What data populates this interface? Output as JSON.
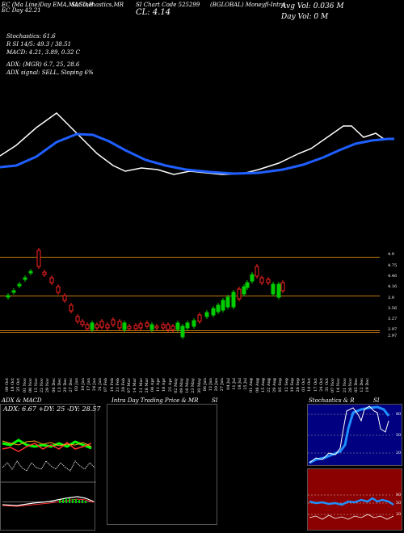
{
  "header": {
    "line1": "EC (Ma Line)Day EMA,MACD,B",
    "line1b": "EC Day      42.21",
    "line2": "SI,Stochastics,MR",
    "line3": "SI Chart Code 525299",
    "line4": "(BGLOBAL) Moneyfl-Intra",
    "cl_label": "CL: 4.14",
    "avg_vol": "Avg Vol: 0.036   M",
    "day_vol": "Day Vol: 0   M"
  },
  "indicators": {
    "stoch": "Stochastics: 61.6",
    "rsi": "R      SI 14/5: 49.3 / 38.51",
    "macd": "MACD: 4.21, 3.89, 0.32  C",
    "adx": "ADX:                     (MGR) 6.7,  25,  28.6",
    "adx_signal": "ADX  signal: SELL, Sloping  6%"
  },
  "price_axis": {
    "labels": [
      "4.9",
      "4.75",
      "4.46",
      "4.16",
      "3.9",
      "3.56",
      "3.27",
      "2.97",
      "2.97"
    ],
    "top_label": "4.9"
  },
  "dates": [
    "09 Oct",
    "18 Oct",
    "25 Oct",
    "01 Nov",
    "08 Nov",
    "15 Nov",
    "22 Nov",
    "29 Nov",
    "06 Dec",
    "13 Dec",
    "20 Dec",
    "27 Dec",
    "03 Jan",
    "10 Jan",
    "17 Jan",
    "24 Jan",
    "31 Jan",
    "07 Feb",
    "14 Feb",
    "21 Feb",
    "28 Feb",
    "07 Mar",
    "14 Mar",
    "21 Mar",
    "28 Mar",
    "04 Apr",
    "11 Apr",
    "18 Apr",
    "25 Apr",
    "02 May",
    "09 May",
    "16 May",
    "23 May",
    "30 May",
    "06 Jun",
    "13 Jun",
    "20 Jun",
    "27 Jun",
    "04 Jul",
    "11 Jul",
    "18 Jul",
    "25 Jul",
    "01 Aug",
    "08 Aug",
    "15 Aug",
    "22 Aug",
    "29 Aug",
    "05 Sep",
    "12 Sep",
    "19 Sep",
    "26 Sep",
    "03 Oct",
    "10 Oct",
    "17 Oct",
    "24 Oct",
    "31 Oct",
    "07 Nov",
    "14 Nov",
    "21 Nov",
    "28 Nov",
    "05 Dec",
    "12 Dec",
    "19 Dec"
  ],
  "panels": {
    "adx_title": "ADX  & MACD",
    "adx_readout": "ADX: 6.67  +DY: 25  -DY: 28.57",
    "intra_title": "Intra  Day Trading Price  & MR",
    "intra_title_b": "SI",
    "stoch_title": "Stochastics & R",
    "stoch_title_b": "SI",
    "stoch_axis": [
      "80",
      "50",
      "20"
    ],
    "rsi_axis": [
      "80",
      "50",
      "20"
    ]
  },
  "colors": {
    "background": "#000000",
    "ema_fast": "#ffffff",
    "ema_slow": "#1f5fff",
    "candle_up": "#00cc00",
    "candle_down": "#ff2222",
    "level_line": "#c07a10",
    "stoch_bg": "#000080",
    "rsi_bg": "#8b0000"
  }
}
